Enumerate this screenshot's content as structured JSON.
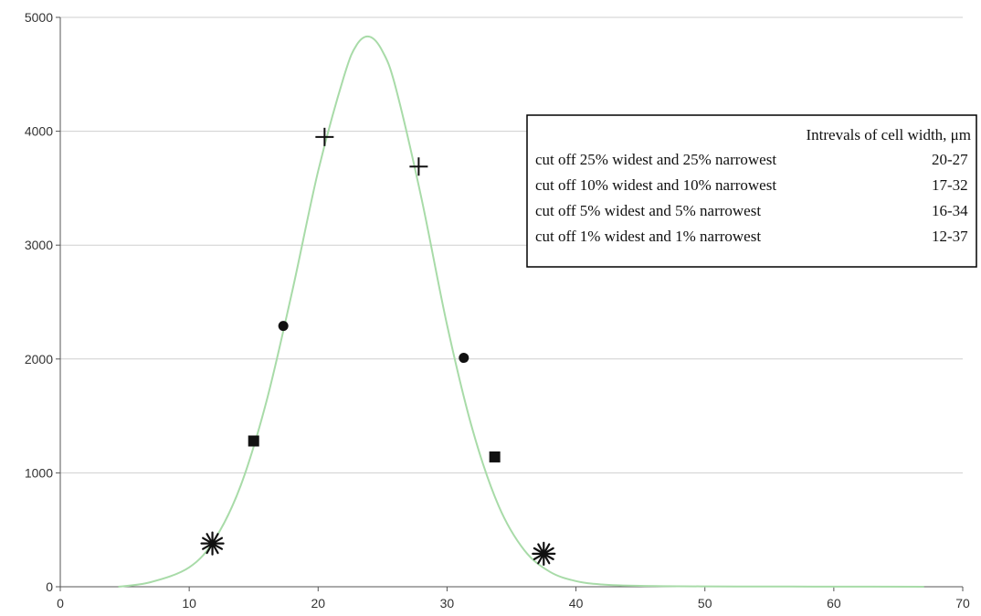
{
  "chart_data": {
    "type": "line",
    "title": "",
    "xlabel": "",
    "ylabel": "",
    "xlim": [
      0,
      70
    ],
    "ylim": [
      0,
      5000
    ],
    "x_ticks": [
      "0",
      "10",
      "20",
      "30",
      "40",
      "50",
      "60",
      "70"
    ],
    "y_ticks": [
      "0",
      "1000",
      "2000",
      "3000",
      "4000",
      "5000"
    ],
    "grid": "horizontal",
    "curve": {
      "color": "#a8dba8",
      "x": [
        4.5,
        7,
        10,
        12,
        14,
        16,
        18,
        20,
        22,
        23,
        24,
        25,
        26,
        28,
        30,
        32,
        34,
        36,
        38,
        40,
        42,
        45,
        50,
        55,
        60,
        67
      ],
      "y": [
        0,
        40,
        170,
        420,
        890,
        1630,
        2600,
        3650,
        4480,
        4760,
        4830,
        4700,
        4390,
        3420,
        2300,
        1370,
        710,
        320,
        130,
        50,
        20,
        8,
        3,
        2,
        1,
        0
      ]
    },
    "marker_sets": [
      {
        "symbol": "+",
        "interval": "20-27",
        "points": [
          {
            "x": 20.5,
            "y": 3950
          },
          {
            "x": 27.8,
            "y": 3690
          }
        ]
      },
      {
        "symbol": "●",
        "interval": "17-32",
        "points": [
          {
            "x": 17.3,
            "y": 2290
          },
          {
            "x": 31.3,
            "y": 2010
          }
        ]
      },
      {
        "symbol": "■",
        "interval": "16-34",
        "points": [
          {
            "x": 15.0,
            "y": 1280
          },
          {
            "x": 33.7,
            "y": 1140
          }
        ]
      },
      {
        "symbol": "*",
        "interval": "12-37",
        "points": [
          {
            "x": 11.8,
            "y": 380
          },
          {
            "x": 37.5,
            "y": 290
          }
        ]
      }
    ],
    "legend": {
      "placement": "top-right",
      "header": "Intrevals of cell width, μm",
      "rows": [
        {
          "label": "cut off 25% widest and 25% narrowest",
          "value": "20-27"
        },
        {
          "label": "cut off 10% widest and 10% narrowest",
          "value": "17-32"
        },
        {
          "label": "cut off 5% widest and 5% narrowest",
          "value": "16-34"
        },
        {
          "label": "cut off 1% widest and 1% narrowest",
          "value": "12-37"
        }
      ]
    }
  }
}
